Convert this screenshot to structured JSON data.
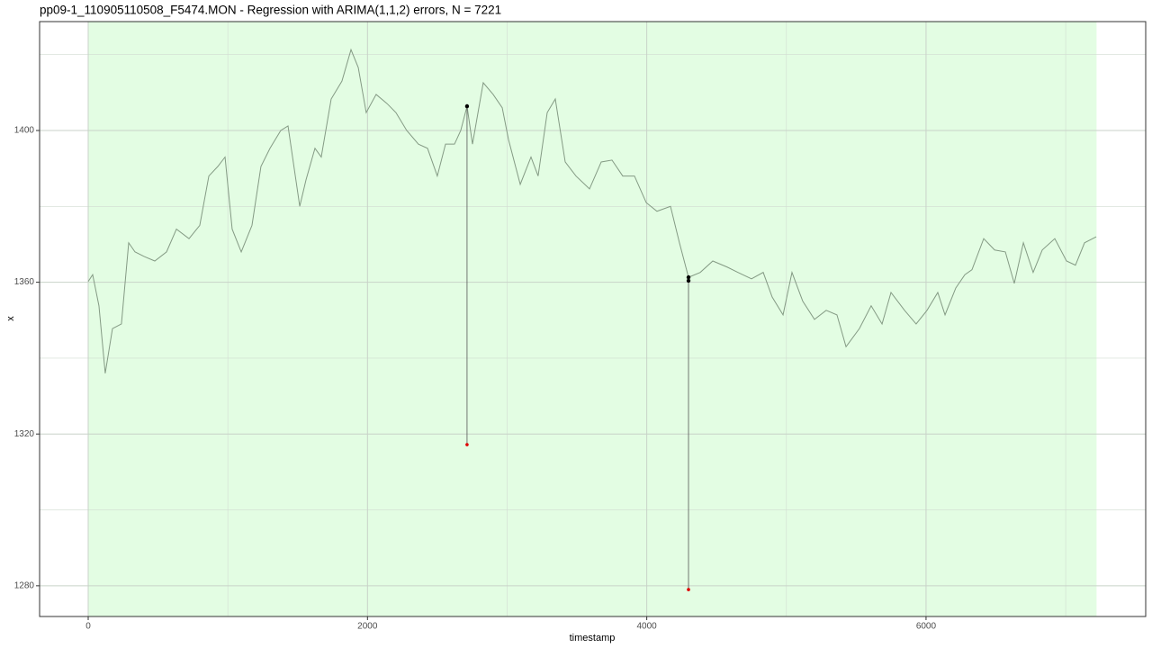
{
  "chart_data": {
    "type": "line",
    "title": "pp09-1_110905110508_F5474.MON - Regression with ARIMA(1,1,2) errors, N = 7221",
    "x_label": "timestamp",
    "y_label": "x",
    "x": [
      0,
      32,
      77,
      122,
      174,
      238,
      290,
      335,
      400,
      477,
      561,
      632,
      722,
      799,
      864,
      928,
      980,
      1031,
      1096,
      1173,
      1237,
      1302,
      1379,
      1431,
      1515,
      1560,
      1624,
      1669,
      1740,
      1817,
      1882,
      1934,
      1991,
      2062,
      2140,
      2204,
      2281,
      2365,
      2430,
      2500,
      2559,
      2623,
      2668,
      2713,
      2752,
      2829,
      2900,
      2965,
      3010,
      3094,
      3171,
      3222,
      3287,
      3345,
      3416,
      3493,
      3590,
      3674,
      3751,
      3828,
      3912,
      3996,
      4073,
      4170,
      4234,
      4299,
      4383,
      4473,
      4576,
      4653,
      4750,
      4834,
      4898,
      4976,
      5040,
      5117,
      5201,
      5285,
      5362,
      5427,
      5523,
      5607,
      5685,
      5749,
      5846,
      5929,
      6007,
      6084,
      6136,
      6213,
      6278,
      6329,
      6413,
      6491,
      6568,
      6632,
      6697,
      6767,
      6832,
      6922,
      7006,
      7070,
      7135,
      7219
    ],
    "values": [
      1360.2,
      1362,
      1353.8,
      1336,
      1347.8,
      1349,
      1370.4,
      1368,
      1366.8,
      1365.6,
      1368,
      1374,
      1371.5,
      1375,
      1388,
      1390.5,
      1393,
      1374,
      1368,
      1375,
      1390.5,
      1395.3,
      1400,
      1401.2,
      1380,
      1387,
      1395.3,
      1393,
      1408.3,
      1413,
      1421.3,
      1416.6,
      1404.7,
      1409.5,
      1407.1,
      1404.7,
      1400,
      1396.4,
      1395.3,
      1388,
      1396.4,
      1396.4,
      1400,
      1406.4,
      1396.4,
      1412.6,
      1409.5,
      1406,
      1397.6,
      1385.8,
      1393,
      1388,
      1404.7,
      1408.3,
      1391.7,
      1388,
      1384.6,
      1391.7,
      1392.2,
      1388,
      1388,
      1381,
      1378.7,
      1380,
      1370.4,
      1361.3,
      1362.6,
      1365.6,
      1364,
      1362.6,
      1360.9,
      1362.6,
      1356.1,
      1351.4,
      1362.6,
      1355,
      1350.2,
      1352.6,
      1351.4,
      1343,
      1347.8,
      1353.8,
      1349,
      1357.3,
      1352.6,
      1349,
      1352.6,
      1357.3,
      1351.4,
      1358.5,
      1362,
      1363.3,
      1371.5,
      1368.5,
      1368,
      1359.7,
      1370.4,
      1362.6,
      1368.5,
      1371.5,
      1365.6,
      1364.5,
      1370.4,
      1372
    ],
    "color": "#849a84",
    "highlight_range": [
      0,
      7221
    ],
    "highlight_color": "#e3fde3",
    "anomaly_points": {
      "x": [
        2713,
        4299,
        4299
      ],
      "values": [
        1406.4,
        1361.3,
        1360.4
      ],
      "color": "#000000"
    },
    "bound_points": {
      "x": [
        2713,
        4299
      ],
      "values": [
        1317.2,
        1279
      ],
      "color": "#e00000"
    },
    "xlim": [
      -348,
      7573
    ],
    "ylim": [
      1271.9,
      1428.7
    ],
    "xticks": [
      0,
      2000,
      4000,
      6000
    ],
    "yticks": [
      1280,
      1320,
      1360,
      1400
    ],
    "x_minor_breaks": [
      1000,
      3000,
      5000,
      7000
    ],
    "y_minor_breaks": [
      1300,
      1340,
      1380,
      1420
    ],
    "grid": true
  }
}
